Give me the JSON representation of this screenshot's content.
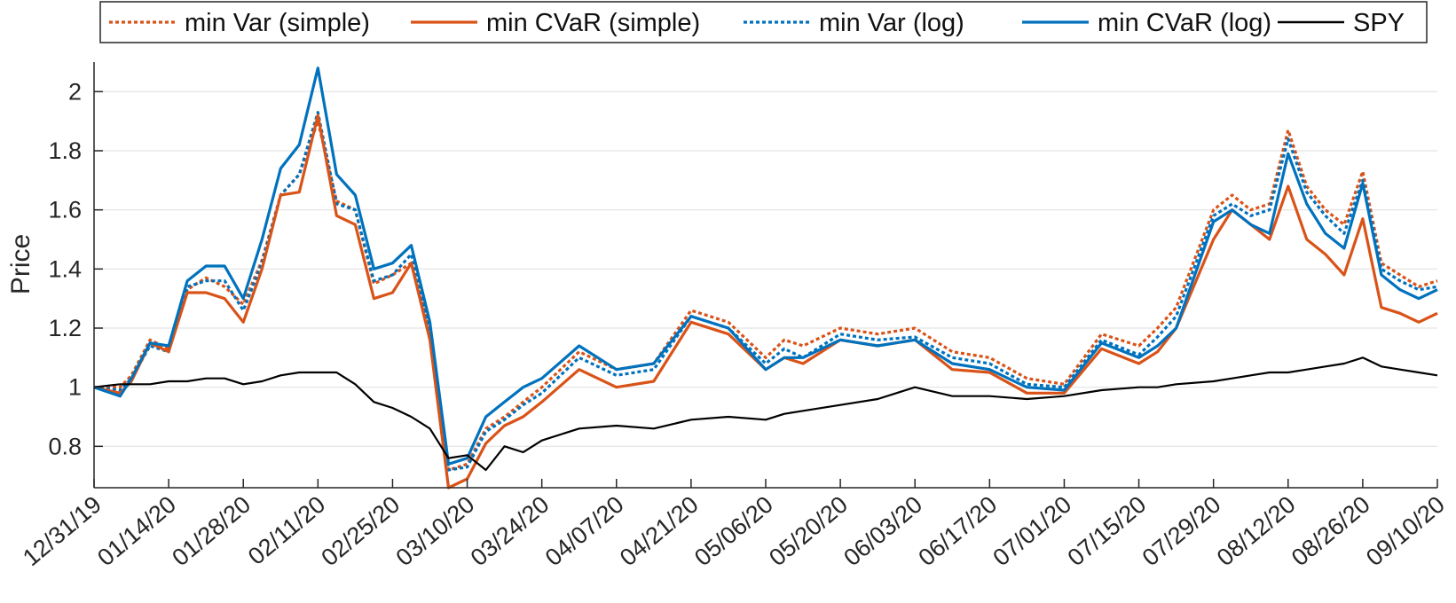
{
  "chart_data": {
    "type": "line",
    "title": "",
    "xlabel": "",
    "ylabel": "Price",
    "ylim": [
      0.66,
      2.1
    ],
    "yticks": [
      "0.8",
      "1",
      "1.2",
      "1.4",
      "1.6",
      "1.8",
      "2"
    ],
    "ytick_values": [
      0.8,
      1.0,
      1.2,
      1.4,
      1.6,
      1.8,
      2.0
    ],
    "grid": "horizontal",
    "legend_position": "top",
    "xticks": [
      "12/31/19",
      "01/14/20",
      "01/28/20",
      "02/11/20",
      "02/25/20",
      "03/10/20",
      "03/24/20",
      "04/07/20",
      "04/21/20",
      "05/06/20",
      "05/20/20",
      "06/03/20",
      "06/17/20",
      "07/01/20",
      "07/15/20",
      "07/29/20",
      "08/12/20",
      "08/26/20",
      "09/10/20"
    ],
    "series": [
      {
        "name": "min Var (simple)",
        "color": "#D95319",
        "style": "dotted",
        "x": [
          0,
          0.35,
          0.5,
          0.75,
          1.0,
          1.25,
          1.5,
          1.75,
          2.0,
          2.25,
          2.5,
          2.75,
          3.0,
          3.25,
          3.5,
          3.75,
          4.0,
          4.25,
          4.5,
          4.75,
          5.0,
          5.25,
          5.5,
          5.75,
          6.0,
          6.5,
          7.0,
          7.5,
          8.0,
          8.5,
          9.0,
          9.25,
          9.5,
          10.0,
          10.5,
          11.0,
          11.5,
          12.0,
          12.5,
          13.0,
          13.5,
          14.0,
          14.25,
          14.5,
          15.0,
          15.25,
          15.5,
          15.75,
          16.0,
          16.25,
          16.5,
          16.75,
          17.0,
          17.25,
          17.5,
          17.75,
          18.0
        ],
        "y": [
          1.0,
          1.0,
          1.04,
          1.16,
          1.13,
          1.33,
          1.37,
          1.34,
          1.28,
          1.43,
          1.65,
          1.72,
          1.9,
          1.63,
          1.6,
          1.35,
          1.38,
          1.42,
          1.19,
          0.72,
          0.74,
          0.86,
          0.9,
          0.95,
          1.0,
          1.12,
          1.06,
          1.08,
          1.26,
          1.22,
          1.1,
          1.16,
          1.14,
          1.2,
          1.18,
          1.2,
          1.12,
          1.1,
          1.03,
          1.01,
          1.18,
          1.14,
          1.2,
          1.27,
          1.6,
          1.65,
          1.6,
          1.62,
          1.87,
          1.68,
          1.6,
          1.55,
          1.73,
          1.42,
          1.38,
          1.34,
          1.36
        ]
      },
      {
        "name": "min CVaR (simple)",
        "color": "#D95319",
        "style": "solid",
        "x": [
          0,
          0.35,
          0.5,
          0.75,
          1.0,
          1.25,
          1.5,
          1.75,
          2.0,
          2.25,
          2.5,
          2.75,
          3.0,
          3.25,
          3.5,
          3.75,
          4.0,
          4.25,
          4.5,
          4.75,
          5.0,
          5.25,
          5.5,
          5.75,
          6.0,
          6.5,
          7.0,
          7.5,
          8.0,
          8.5,
          9.0,
          9.25,
          9.5,
          10.0,
          10.5,
          11.0,
          11.5,
          12.0,
          12.5,
          13.0,
          13.5,
          14.0,
          14.25,
          14.5,
          15.0,
          15.25,
          15.5,
          15.75,
          16.0,
          16.25,
          16.5,
          16.75,
          17.0,
          17.25,
          17.5,
          17.75,
          18.0
        ],
        "y": [
          1.0,
          0.98,
          1.02,
          1.15,
          1.12,
          1.32,
          1.32,
          1.3,
          1.22,
          1.4,
          1.65,
          1.66,
          1.92,
          1.58,
          1.55,
          1.3,
          1.32,
          1.42,
          1.16,
          0.66,
          0.69,
          0.81,
          0.87,
          0.9,
          0.95,
          1.06,
          1.0,
          1.02,
          1.22,
          1.18,
          1.06,
          1.1,
          1.08,
          1.16,
          1.14,
          1.16,
          1.06,
          1.05,
          0.98,
          0.98,
          1.13,
          1.08,
          1.12,
          1.2,
          1.5,
          1.6,
          1.55,
          1.5,
          1.68,
          1.5,
          1.45,
          1.38,
          1.57,
          1.27,
          1.25,
          1.22,
          1.25
        ]
      },
      {
        "name": "min Var (log)",
        "color": "#0072BD",
        "style": "dotted",
        "x": [
          0,
          0.35,
          0.5,
          0.75,
          1.0,
          1.25,
          1.5,
          1.75,
          2.0,
          2.25,
          2.5,
          2.75,
          3.0,
          3.25,
          3.5,
          3.75,
          4.0,
          4.25,
          4.5,
          4.75,
          5.0,
          5.25,
          5.5,
          5.75,
          6.0,
          6.5,
          7.0,
          7.5,
          8.0,
          8.5,
          9.0,
          9.25,
          9.5,
          10.0,
          10.5,
          11.0,
          11.5,
          12.0,
          12.5,
          13.0,
          13.5,
          14.0,
          14.25,
          14.5,
          15.0,
          15.25,
          15.5,
          15.75,
          16.0,
          16.25,
          16.5,
          16.75,
          17.0,
          17.25,
          17.5,
          17.75,
          18.0
        ],
        "y": [
          1.0,
          0.99,
          1.03,
          1.14,
          1.12,
          1.34,
          1.36,
          1.36,
          1.26,
          1.42,
          1.65,
          1.72,
          1.93,
          1.62,
          1.6,
          1.36,
          1.38,
          1.45,
          1.19,
          0.72,
          0.73,
          0.85,
          0.89,
          0.94,
          0.98,
          1.1,
          1.04,
          1.06,
          1.24,
          1.2,
          1.08,
          1.13,
          1.1,
          1.18,
          1.16,
          1.17,
          1.1,
          1.08,
          1.01,
          1.0,
          1.16,
          1.11,
          1.17,
          1.24,
          1.58,
          1.62,
          1.58,
          1.6,
          1.84,
          1.66,
          1.58,
          1.52,
          1.7,
          1.4,
          1.36,
          1.33,
          1.34
        ]
      },
      {
        "name": "min CVaR (log)",
        "color": "#0072BD",
        "style": "solid",
        "x": [
          0,
          0.35,
          0.5,
          0.75,
          1.0,
          1.25,
          1.5,
          1.75,
          2.0,
          2.25,
          2.5,
          2.75,
          3.0,
          3.25,
          3.5,
          3.75,
          4.0,
          4.25,
          4.5,
          4.75,
          5.0,
          5.25,
          5.5,
          5.75,
          6.0,
          6.5,
          7.0,
          7.5,
          8.0,
          8.5,
          9.0,
          9.25,
          9.5,
          10.0,
          10.5,
          11.0,
          11.5,
          12.0,
          12.5,
          13.0,
          13.5,
          14.0,
          14.25,
          14.5,
          15.0,
          15.25,
          15.5,
          15.75,
          16.0,
          16.25,
          16.5,
          16.75,
          17.0,
          17.25,
          17.5,
          17.75,
          18.0
        ],
        "y": [
          1.0,
          0.97,
          1.03,
          1.15,
          1.14,
          1.36,
          1.41,
          1.41,
          1.3,
          1.5,
          1.74,
          1.82,
          2.08,
          1.72,
          1.65,
          1.4,
          1.42,
          1.48,
          1.22,
          0.74,
          0.76,
          0.9,
          0.95,
          1.0,
          1.03,
          1.14,
          1.06,
          1.08,
          1.24,
          1.2,
          1.06,
          1.1,
          1.1,
          1.16,
          1.14,
          1.16,
          1.08,
          1.06,
          1.0,
          0.99,
          1.15,
          1.1,
          1.14,
          1.2,
          1.56,
          1.6,
          1.55,
          1.52,
          1.79,
          1.62,
          1.52,
          1.47,
          1.69,
          1.38,
          1.33,
          1.3,
          1.33
        ]
      },
      {
        "name": "SPY",
        "color": "#000000",
        "style": "solid",
        "x": [
          0,
          0.35,
          0.5,
          0.75,
          1.0,
          1.25,
          1.5,
          1.75,
          2.0,
          2.25,
          2.5,
          2.75,
          3.0,
          3.25,
          3.5,
          3.75,
          4.0,
          4.25,
          4.5,
          4.75,
          5.0,
          5.25,
          5.5,
          5.75,
          6.0,
          6.5,
          7.0,
          7.5,
          8.0,
          8.5,
          9.0,
          9.25,
          9.5,
          10.0,
          10.5,
          11.0,
          11.5,
          12.0,
          12.5,
          13.0,
          13.5,
          14.0,
          14.25,
          14.5,
          15.0,
          15.25,
          15.5,
          15.75,
          16.0,
          16.25,
          16.5,
          16.75,
          17.0,
          17.25,
          17.5,
          17.75,
          18.0
        ],
        "y": [
          1.0,
          1.01,
          1.01,
          1.01,
          1.02,
          1.02,
          1.03,
          1.03,
          1.01,
          1.02,
          1.04,
          1.05,
          1.05,
          1.05,
          1.01,
          0.95,
          0.93,
          0.9,
          0.86,
          0.76,
          0.77,
          0.72,
          0.8,
          0.78,
          0.82,
          0.86,
          0.87,
          0.86,
          0.89,
          0.9,
          0.89,
          0.91,
          0.92,
          0.94,
          0.96,
          1.0,
          0.97,
          0.97,
          0.96,
          0.97,
          0.99,
          1.0,
          1.0,
          1.01,
          1.02,
          1.03,
          1.04,
          1.05,
          1.05,
          1.06,
          1.07,
          1.08,
          1.1,
          1.07,
          1.06,
          1.05,
          1.04
        ]
      }
    ]
  }
}
